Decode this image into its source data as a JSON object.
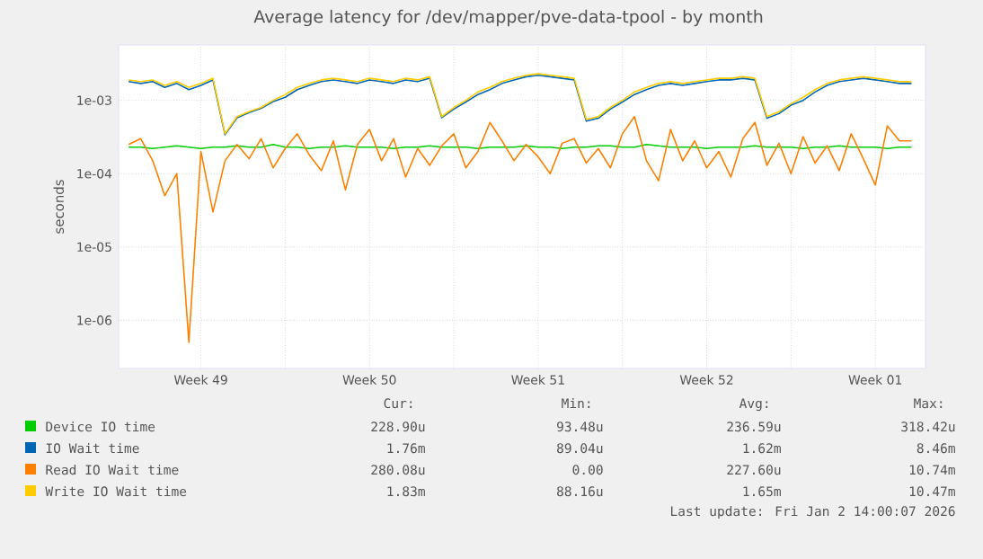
{
  "chart_data": {
    "type": "line",
    "title": "Average latency for /dev/mapper/pve-data-tpool - by month",
    "ylabel": "seconds",
    "log": "y",
    "grid": true,
    "legend": "bottom",
    "xlim": [
      "2025-12-01T02:00",
      "2026-01-03T14:00"
    ],
    "ylim": [
      2.2e-07,
      0.0057
    ],
    "yticks": [
      {
        "value": 1e-06,
        "label": "1e-06"
      },
      {
        "value": 1e-05,
        "label": "1e-05"
      },
      {
        "value": 0.0001,
        "label": "1e-04"
      },
      {
        "value": 0.001,
        "label": "1e-03"
      }
    ],
    "xticks": [
      {
        "value": "2025-12-04T12:00",
        "label": "Week 49"
      },
      {
        "value": "2025-12-08T00:00",
        "label": null
      },
      {
        "value": "2025-12-11T12:00",
        "label": "Week 50"
      },
      {
        "value": "2025-12-15T00:00",
        "label": null
      },
      {
        "value": "2025-12-18T12:00",
        "label": "Week 51"
      },
      {
        "value": "2025-12-22T00:00",
        "label": null
      },
      {
        "value": "2025-12-25T12:00",
        "label": "Week 52"
      },
      {
        "value": "2025-12-29T00:00",
        "label": null
      },
      {
        "value": "2026-01-01T12:00",
        "label": "Week 01"
      }
    ],
    "x": [
      "2025-12-01T12:00",
      "2025-12-02T00:00",
      "2025-12-02T12:00",
      "2025-12-03T00:00",
      "2025-12-03T12:00",
      "2025-12-04T00:00",
      "2025-12-04T12:00",
      "2025-12-05T00:00",
      "2025-12-05T12:00",
      "2025-12-06T00:00",
      "2025-12-06T12:00",
      "2025-12-07T00:00",
      "2025-12-07T12:00",
      "2025-12-08T00:00",
      "2025-12-08T12:00",
      "2025-12-09T00:00",
      "2025-12-09T12:00",
      "2025-12-10T00:00",
      "2025-12-10T12:00",
      "2025-12-11T00:00",
      "2025-12-11T12:00",
      "2025-12-12T00:00",
      "2025-12-12T12:00",
      "2025-12-13T00:00",
      "2025-12-13T12:00",
      "2025-12-14T00:00",
      "2025-12-14T12:00",
      "2025-12-15T00:00",
      "2025-12-15T12:00",
      "2025-12-16T00:00",
      "2025-12-16T12:00",
      "2025-12-17T00:00",
      "2025-12-17T12:00",
      "2025-12-18T00:00",
      "2025-12-18T12:00",
      "2025-12-19T00:00",
      "2025-12-19T12:00",
      "2025-12-20T00:00",
      "2025-12-20T12:00",
      "2025-12-21T00:00",
      "2025-12-21T12:00",
      "2025-12-22T00:00",
      "2025-12-22T12:00",
      "2025-12-23T00:00",
      "2025-12-23T12:00",
      "2025-12-24T00:00",
      "2025-12-24T12:00",
      "2025-12-25T00:00",
      "2025-12-25T12:00",
      "2025-12-26T00:00",
      "2025-12-26T12:00",
      "2025-12-27T00:00",
      "2025-12-27T12:00",
      "2025-12-28T00:00",
      "2025-12-28T12:00",
      "2025-12-29T00:00",
      "2025-12-29T12:00",
      "2025-12-30T00:00",
      "2025-12-30T12:00",
      "2025-12-31T00:00",
      "2025-12-31T12:00",
      "2026-01-01T00:00",
      "2026-01-01T12:00",
      "2026-01-02T00:00",
      "2026-01-02T12:00",
      "2026-01-03T00:00"
    ],
    "series": [
      {
        "name": "Device IO time",
        "color": "#00cc00",
        "values": [
          0.00023,
          0.00023,
          0.00022,
          0.00023,
          0.00024,
          0.00023,
          0.00022,
          0.00023,
          0.00023,
          0.00024,
          0.00023,
          0.00023,
          0.00025,
          0.00023,
          0.00023,
          0.00022,
          0.00023,
          0.00023,
          0.00024,
          0.00023,
          0.00023,
          0.00023,
          0.00022,
          0.00023,
          0.00023,
          0.00024,
          0.00023,
          0.00023,
          0.00023,
          0.00022,
          0.00023,
          0.00023,
          0.00023,
          0.00024,
          0.00023,
          0.00023,
          0.00022,
          0.00023,
          0.00023,
          0.00024,
          0.00024,
          0.00023,
          0.00023,
          0.00025,
          0.00024,
          0.00023,
          0.00023,
          0.00023,
          0.00022,
          0.00023,
          0.00023,
          0.00023,
          0.00024,
          0.00023,
          0.00023,
          0.00023,
          0.00022,
          0.00023,
          0.00023,
          0.00024,
          0.00023,
          0.00023,
          0.00023,
          0.00022,
          0.00023,
          0.00023
        ]
      },
      {
        "name": "IO Wait time",
        "color": "#0066b3",
        "values": [
          0.0018,
          0.0017,
          0.0018,
          0.0015,
          0.0017,
          0.0014,
          0.0016,
          0.0019,
          0.00034,
          0.00058,
          0.00068,
          0.00078,
          0.00096,
          0.0011,
          0.0014,
          0.0016,
          0.0018,
          0.0019,
          0.0018,
          0.0017,
          0.0019,
          0.0018,
          0.0017,
          0.0019,
          0.0018,
          0.002,
          0.00058,
          0.00076,
          0.00095,
          0.0012,
          0.0014,
          0.0017,
          0.0019,
          0.0021,
          0.0022,
          0.0021,
          0.002,
          0.0019,
          0.00052,
          0.00057,
          0.00076,
          0.00095,
          0.0012,
          0.0014,
          0.0016,
          0.0017,
          0.0016,
          0.0017,
          0.0018,
          0.0019,
          0.0019,
          0.002,
          0.0019,
          0.00057,
          0.00066,
          0.00086,
          0.001,
          0.0013,
          0.0016,
          0.0018,
          0.0019,
          0.002,
          0.0019,
          0.0018,
          0.0017,
          0.0017
        ]
      },
      {
        "name": "Read IO Wait time",
        "color": "#ff8000",
        "values": [
          0.00025,
          0.0003,
          0.00015,
          5e-05,
          0.0001,
          5e-07,
          0.0002,
          3e-05,
          0.00015,
          0.00025,
          0.00016,
          0.0003,
          0.00012,
          0.00022,
          0.00035,
          0.00018,
          0.00011,
          0.00028,
          6e-05,
          0.00025,
          0.0004,
          0.00015,
          0.0003,
          9e-05,
          0.00022,
          0.00013,
          0.00024,
          0.00035,
          0.00012,
          0.0002,
          0.0005,
          0.00028,
          0.00015,
          0.00025,
          0.00017,
          0.0001,
          0.00026,
          0.0003,
          0.00014,
          0.00022,
          0.00012,
          0.00035,
          0.0006,
          0.00015,
          8e-05,
          0.0004,
          0.00015,
          0.00028,
          0.00012,
          0.0002,
          9e-05,
          0.0003,
          0.0005,
          0.00013,
          0.00026,
          0.0001,
          0.00032,
          0.00014,
          0.00024,
          0.00011,
          0.00035,
          0.00016,
          7e-05,
          0.00045,
          0.00028,
          0.00028
        ]
      },
      {
        "name": "Write IO Wait time",
        "color": "#ffcc00",
        "values": [
          0.0019,
          0.0018,
          0.0019,
          0.0016,
          0.0018,
          0.0015,
          0.0017,
          0.002,
          0.00035,
          0.0006,
          0.0007,
          0.0008,
          0.001,
          0.0012,
          0.0015,
          0.0017,
          0.0019,
          0.002,
          0.0019,
          0.0018,
          0.002,
          0.0019,
          0.0018,
          0.002,
          0.0019,
          0.0021,
          0.0006,
          0.0008,
          0.001,
          0.0013,
          0.0015,
          0.0018,
          0.002,
          0.0022,
          0.0023,
          0.0022,
          0.0021,
          0.002,
          0.00055,
          0.0006,
          0.0008,
          0.001,
          0.0013,
          0.0015,
          0.0017,
          0.0018,
          0.0017,
          0.0018,
          0.0019,
          0.002,
          0.002,
          0.0021,
          0.002,
          0.0006,
          0.0007,
          0.0009,
          0.0011,
          0.0014,
          0.0017,
          0.0019,
          0.002,
          0.0021,
          0.002,
          0.0019,
          0.0018,
          0.0018
        ]
      }
    ],
    "annotations": [
      "Cur:",
      "Min:",
      "Avg:",
      "Max:",
      "228.90u",
      "93.48u",
      "236.59u",
      "318.42u",
      "1.76m",
      "89.04u",
      "1.62m",
      "8.46m",
      "280.08u",
      "0.00",
      "227.60u",
      "10.74m",
      "1.83m",
      "88.16u",
      "1.65m",
      "10.47m",
      "Last update: Fri Jan  2 14:00:07 2026"
    ]
  }
}
